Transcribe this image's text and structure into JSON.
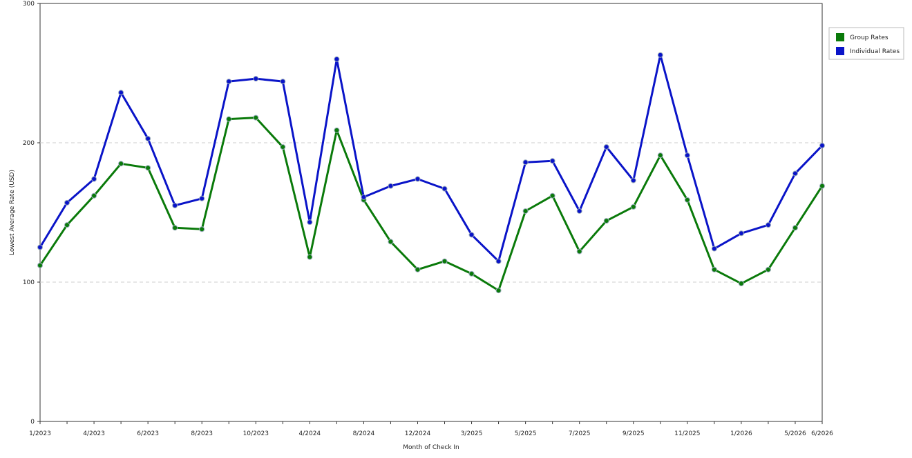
{
  "chart_data": {
    "type": "line",
    "x_label": "Month of Check In",
    "y_label": "Lowest Average Rate (USD)",
    "categories": [
      "1/2023",
      null,
      "4/2023",
      null,
      "6/2023",
      null,
      "8/2023",
      null,
      "10/2023",
      null,
      "4/2024",
      null,
      "8/2024",
      null,
      "12/2024",
      null,
      "3/2025",
      null,
      "5/2025",
      null,
      "7/2025",
      null,
      "9/2025",
      null,
      "11/2025",
      null,
      "1/2026",
      null,
      "5/2026",
      "6/2026"
    ],
    "series": [
      {
        "name": "Group Rates",
        "color": "#0a7a0a",
        "values": [
          112,
          141,
          162,
          185,
          182,
          139,
          138,
          217,
          218,
          197,
          118,
          209,
          159,
          129,
          109,
          115,
          106,
          94,
          151,
          162,
          122,
          144,
          154,
          191,
          159,
          109,
          99,
          109,
          139,
          169
        ]
      },
      {
        "name": "Individual Rates",
        "color": "#0a14c8",
        "values": [
          125,
          157,
          174,
          236,
          203,
          155,
          160,
          244,
          246,
          244,
          143,
          260,
          161,
          169,
          174,
          167,
          134,
          115,
          186,
          187,
          151,
          197,
          173,
          263,
          191,
          124,
          135,
          141,
          178,
          198
        ]
      }
    ],
    "ylim": [
      0,
      300
    ],
    "yticks": [
      0,
      100,
      200,
      300
    ],
    "grid": true,
    "legend": "right"
  }
}
